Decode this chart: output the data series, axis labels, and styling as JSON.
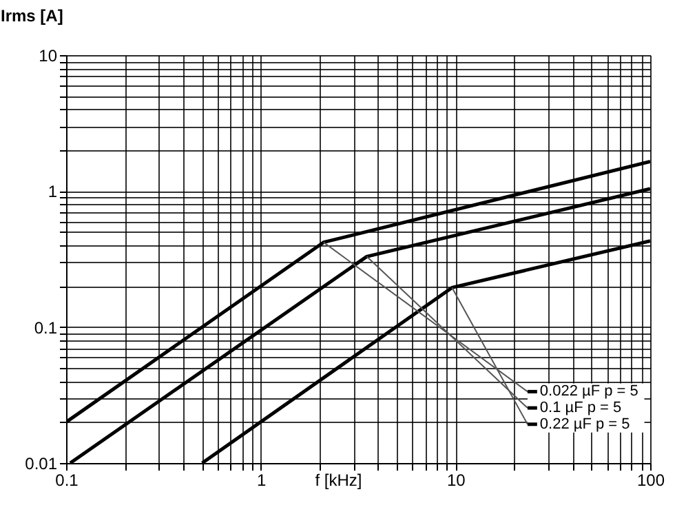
{
  "chart_data": {
    "type": "line",
    "xlabel": "f [kHz]",
    "ylabel": "Irms [A]",
    "log": "xy",
    "xlim": [
      0.1,
      100
    ],
    "ylim": [
      0.01,
      10
    ],
    "xticks": [
      0.1,
      {
        "value": 0.2,
        "label": null
      },
      {
        "value": 0.3,
        "label": null
      },
      {
        "value": 0.4,
        "label": null
      },
      {
        "value": 0.5,
        "label": null
      },
      {
        "value": 0.6,
        "label": null
      },
      {
        "value": 0.7,
        "label": null
      },
      {
        "value": 0.8,
        "label": null
      },
      {
        "value": 0.9,
        "label": null
      },
      1,
      {
        "value": 2,
        "label": null
      },
      {
        "value": 3,
        "label": null
      },
      {
        "value": 4,
        "label": null
      },
      {
        "value": 5,
        "label": null
      },
      {
        "value": 6,
        "label": null
      },
      {
        "value": 7,
        "label": null
      },
      {
        "value": 8,
        "label": null
      },
      {
        "value": 9,
        "label": null
      },
      10,
      {
        "value": 20,
        "label": null
      },
      {
        "value": 30,
        "label": null
      },
      {
        "value": 40,
        "label": null
      },
      {
        "value": 50,
        "label": null
      },
      {
        "value": 60,
        "label": null
      },
      {
        "value": 70,
        "label": null
      },
      {
        "value": 80,
        "label": null
      },
      {
        "value": 90,
        "label": null
      },
      100
    ],
    "yticks": [
      0.01,
      {
        "value": 0.02,
        "label": null
      },
      {
        "value": 0.03,
        "label": null
      },
      {
        "value": 0.04,
        "label": null
      },
      {
        "value": 0.05,
        "label": null
      },
      {
        "value": 0.06,
        "label": null
      },
      {
        "value": 0.07,
        "label": null
      },
      {
        "value": 0.08,
        "label": null
      },
      {
        "value": 0.09,
        "label": null
      },
      0.1,
      {
        "value": 0.2,
        "label": null
      },
      {
        "value": 0.3,
        "label": null
      },
      {
        "value": 0.4,
        "label": null
      },
      {
        "value": 0.5,
        "label": null
      },
      {
        "value": 0.6,
        "label": null
      },
      {
        "value": 0.7,
        "label": null
      },
      {
        "value": 0.8,
        "label": null
      },
      {
        "value": 0.9,
        "label": null
      },
      1,
      {
        "value": 2,
        "label": null
      },
      {
        "value": 3,
        "label": null
      },
      {
        "value": 4,
        "label": null
      },
      {
        "value": 5,
        "label": null
      },
      {
        "value": 6,
        "label": null
      },
      {
        "value": 7,
        "label": null
      },
      {
        "value": 8,
        "label": null
      },
      {
        "value": 9,
        "label": null
      },
      10
    ],
    "grid": true,
    "legend": "bottom right",
    "series": [
      {
        "name": "0.022 µF p = 5",
        "color": "#000000",
        "x": [
          0.1,
          2.1,
          100
        ],
        "values": [
          0.02,
          0.42,
          1.65
        ]
      },
      {
        "name": "0.1 µF p = 5",
        "color": "#000000",
        "x": [
          0.105,
          3.5,
          100
        ],
        "values": [
          0.01,
          0.33,
          1.04
        ]
      },
      {
        "name": "0.22 µF p = 5",
        "color": "#000000",
        "x": [
          0.5,
          9.6,
          100
        ],
        "values": [
          0.01,
          0.195,
          0.43
        ]
      }
    ]
  }
}
